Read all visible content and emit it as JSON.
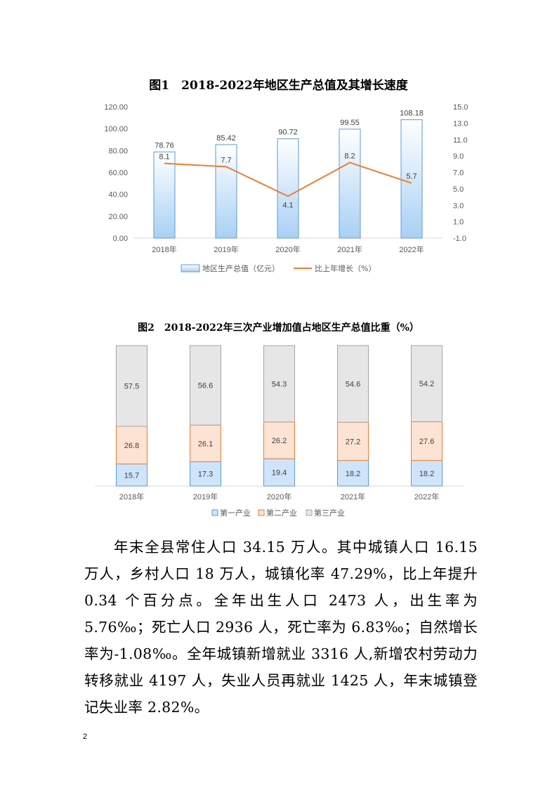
{
  "chart_data": [
    {
      "type": "bar",
      "title": "图1　2018-2022年地区生产总值及其增长速度",
      "categories": [
        "2018年",
        "2019年",
        "2020年",
        "2021年",
        "2022年"
      ],
      "series": [
        {
          "name": "地区生产总值（亿元）",
          "type": "bar",
          "axis": "left",
          "values": [
            78.76,
            85.42,
            90.72,
            99.55,
            108.18
          ],
          "labels": [
            "78.76",
            "85.42",
            "90.72",
            "99.55",
            "108.18"
          ]
        },
        {
          "name": "比上年增长（%）",
          "type": "line",
          "axis": "right",
          "values": [
            8.1,
            7.7,
            4.1,
            8.2,
            5.7
          ],
          "labels": [
            "8.1",
            "7.7",
            "4.1",
            "8.2",
            "5.7"
          ]
        }
      ],
      "ylim": [
        0,
        120
      ],
      "y_ticks": [
        "0.00",
        "20.00",
        "40.00",
        "60.00",
        "80.00",
        "100.00",
        "120.00"
      ],
      "y2lim": [
        -1,
        15
      ],
      "y2_ticks": [
        "-1.0",
        "1.0",
        "3.0",
        "5.0",
        "7.0",
        "9.0",
        "11.0",
        "13.0",
        "15.0"
      ],
      "legend_position": "bottom",
      "colors": {
        "bar_fill_top": "#ffffff",
        "bar_fill_bottom": "#a9d0f5",
        "bar_stroke": "#5b9bd5",
        "line": "#ed7d31"
      }
    },
    {
      "type": "bar",
      "stacked": true,
      "title": "图2　2018-2022年三次产业增加值占地区生产总值比重（%）",
      "categories": [
        "2018年",
        "2019年",
        "2020年",
        "2021年",
        "2022年"
      ],
      "series": [
        {
          "name": "第一产业",
          "values": [
            15.7,
            17.3,
            19.4,
            18.2,
            18.2
          ],
          "labels": [
            "15.7",
            "17.3",
            "19.4",
            "18.2",
            "18.2"
          ]
        },
        {
          "name": "第二产业",
          "values": [
            26.8,
            26.1,
            26.2,
            27.2,
            27.6
          ],
          "labels": [
            "26.8",
            "26.1",
            "26.2",
            "27.2",
            "27.6"
          ]
        },
        {
          "name": "第三产业",
          "values": [
            57.5,
            56.6,
            54.3,
            54.6,
            54.2
          ],
          "labels": [
            "57.5",
            "56.6",
            "54.3",
            "54.6",
            "54.2"
          ]
        }
      ],
      "legend_position": "bottom",
      "colors": {
        "primary_fill": "#cfe4fa",
        "primary_stroke": "#5b9bd5",
        "secondary_fill": "#fde3d3",
        "secondary_stroke": "#ed7d31",
        "tertiary_fill": "#e6e6e6",
        "tertiary_stroke": "#a5a5a5"
      }
    }
  ],
  "text": {
    "paragraph": "年末全县常住人口 34.15 万人。其中城镇人口 16.15 万人，乡村人口 18 万人，城镇化率 47.29%，比上年提升 0.34 个百分点。全年出生人口 2473 人，出生率为 5.76‰；死亡人口 2936 人，死亡率为 6.83‰；自然增长率为-1.08‰。全年城镇新增就业 3316 人,新增农村劳动力转移就业 4197 人，失业人员再就业 1425 人，年末城镇登记失业率 2.82%。",
    "page_number": "2"
  }
}
